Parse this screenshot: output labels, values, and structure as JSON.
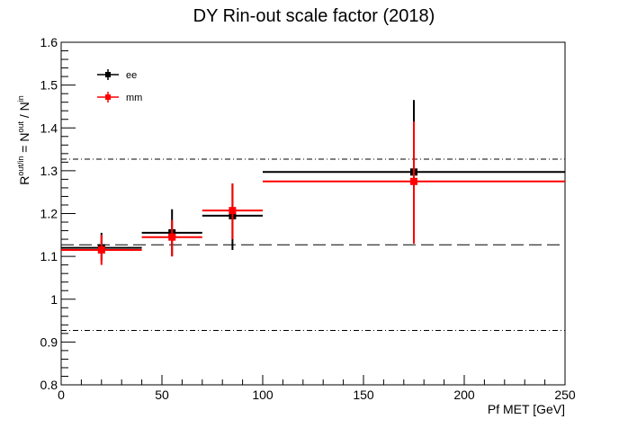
{
  "chart_data": {
    "type": "scatter",
    "title": "DY Rin-out scale factor (2018)",
    "xlabel": "Pf MET [GeV]",
    "ylabel": {
      "base1": "R",
      "sup1": "out/in",
      "eq": " = N",
      "sup2": "out",
      "slash": " / N",
      "sup3": "in"
    },
    "xlim": [
      0,
      250
    ],
    "ylim": [
      0.8,
      1.6
    ],
    "x_ticks": [
      {
        "value": 0,
        "label": "0"
      },
      {
        "value": 50,
        "label": "50"
      },
      {
        "value": 100,
        "label": "100"
      },
      {
        "value": 150,
        "label": "150"
      },
      {
        "value": 200,
        "label": "200"
      },
      {
        "value": 250,
        "label": "250"
      }
    ],
    "y_ticks": [
      {
        "value": 0.8,
        "label": "0.8"
      },
      {
        "value": 0.9,
        "label": "0.9"
      },
      {
        "value": 1.0,
        "label": "1"
      },
      {
        "value": 1.1,
        "label": "1.1"
      },
      {
        "value": 1.2,
        "label": "1.2"
      },
      {
        "value": 1.3,
        "label": "1.3"
      },
      {
        "value": 1.4,
        "label": "1.4"
      },
      {
        "value": 1.5,
        "label": "1.5"
      },
      {
        "value": 1.6,
        "label": "1.6"
      }
    ],
    "legend_position": "top-left",
    "grid": false,
    "series": [
      {
        "name": "ee",
        "color": "#000000",
        "points": [
          {
            "x": 20,
            "x_low": 0,
            "x_high": 40,
            "y": 1.12,
            "y_low": 1.09,
            "y_high": 1.155
          },
          {
            "x": 55,
            "x_low": 40,
            "x_high": 70,
            "y": 1.155,
            "y_low": 1.1,
            "y_high": 1.21
          },
          {
            "x": 85,
            "x_low": 70,
            "x_high": 100,
            "y": 1.195,
            "y_low": 1.115,
            "y_high": 1.27
          },
          {
            "x": 175,
            "x_low": 100,
            "x_high": 250,
            "y": 1.297,
            "y_low": 1.13,
            "y_high": 1.465
          }
        ]
      },
      {
        "name": "mm",
        "color": "#ff0000",
        "points": [
          {
            "x": 20,
            "x_low": 0,
            "x_high": 40,
            "y": 1.115,
            "y_low": 1.08,
            "y_high": 1.15
          },
          {
            "x": 55,
            "x_low": 40,
            "x_high": 70,
            "y": 1.145,
            "y_low": 1.1,
            "y_high": 1.185
          },
          {
            "x": 85,
            "x_low": 70,
            "x_high": 100,
            "y": 1.207,
            "y_low": 1.14,
            "y_high": 1.27
          },
          {
            "x": 175,
            "x_low": 100,
            "x_high": 250,
            "y": 1.275,
            "y_low": 1.13,
            "y_high": 1.415
          }
        ]
      }
    ],
    "reference_lines": [
      {
        "y": 1.127,
        "style": "dashed"
      },
      {
        "y": 1.327,
        "style": "dash-dot"
      },
      {
        "y": 0.927,
        "style": "dash-dot"
      }
    ]
  }
}
